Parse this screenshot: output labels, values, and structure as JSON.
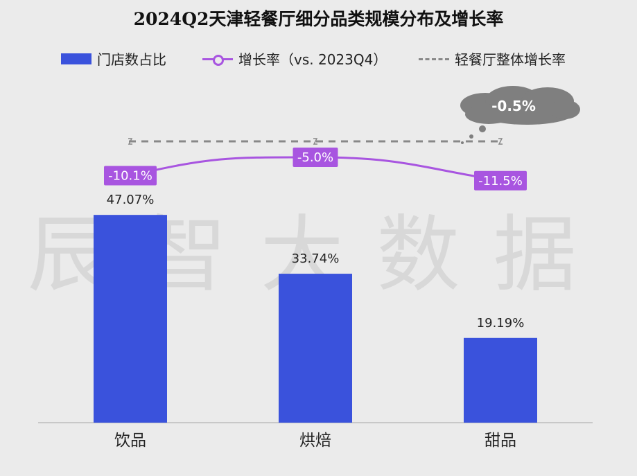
{
  "title": "2024Q2天津轻餐厅细分品类规模分布及增长率",
  "legend": {
    "bar_label": "门店数占比",
    "line_label": "增长率（vs. 2023Q4）",
    "dash_label": "轻餐厅整体增长率"
  },
  "watermark": "辰智大数据",
  "colors": {
    "bar": "#3a52dc",
    "line": "#a855e0",
    "dash": "#888888",
    "cloud": "#7f7f7f"
  },
  "chart_data": {
    "type": "bar",
    "categories": [
      "饮品",
      "烘焙",
      "甜品"
    ],
    "series": [
      {
        "name": "门店数占比",
        "type": "bar",
        "values": [
          47.07,
          33.74,
          19.19
        ],
        "labels": [
          "47.07%",
          "33.74%",
          "19.19%"
        ]
      },
      {
        "name": "增长率（vs. 2023Q4）",
        "type": "line",
        "values": [
          -10.1,
          -5.0,
          -11.5
        ],
        "labels": [
          "-10.1%",
          "-5.0%",
          "-11.5%"
        ]
      },
      {
        "name": "轻餐厅整体增长率",
        "type": "line",
        "style": "dashed",
        "values": [
          -0.5,
          -0.5,
          -0.5
        ],
        "label": "-0.5%"
      }
    ],
    "ylim": [
      0,
      100
    ]
  }
}
